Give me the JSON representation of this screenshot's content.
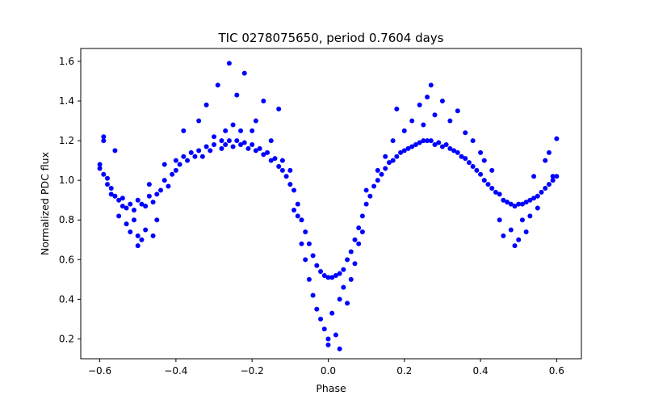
{
  "chart_data": {
    "type": "scatter",
    "title": "TIC 0278075650, period 0.7604 days",
    "xlabel": "Phase",
    "ylabel": "Normalized PDC flux",
    "xlim": [
      -0.65,
      0.665
    ],
    "ylim": [
      0.1,
      1.665
    ],
    "xticks": [
      -0.6,
      -0.4,
      -0.2,
      0.0,
      0.2,
      0.4,
      0.6
    ],
    "xtick_labels": [
      "−0.6",
      "−0.4",
      "−0.2",
      "0.0",
      "0.2",
      "0.4",
      "0.6"
    ],
    "yticks": [
      0.2,
      0.4,
      0.6,
      0.8,
      1.0,
      1.2,
      1.4,
      1.6
    ],
    "ytick_labels": [
      "0.2",
      "0.4",
      "0.6",
      "0.8",
      "1.0",
      "1.2",
      "1.4",
      "1.6"
    ],
    "grid": false,
    "legend": "none",
    "marker_color": "#0000ff",
    "series": [
      {
        "points": [
          [
            -0.6,
            1.08
          ],
          [
            -0.6,
            1.06
          ],
          [
            -0.59,
            1.22
          ],
          [
            -0.59,
            1.2
          ],
          [
            -0.59,
            1.03
          ],
          [
            -0.58,
            1.01
          ],
          [
            -0.58,
            0.98
          ],
          [
            -0.57,
            0.96
          ],
          [
            -0.57,
            0.93
          ],
          [
            -0.56,
            1.15
          ],
          [
            -0.56,
            0.92
          ],
          [
            -0.55,
            0.9
          ],
          [
            -0.55,
            0.82
          ],
          [
            -0.54,
            0.91
          ],
          [
            -0.54,
            0.87
          ],
          [
            -0.53,
            0.86
          ],
          [
            -0.53,
            0.78
          ],
          [
            -0.52,
            0.88
          ],
          [
            -0.52,
            0.74
          ],
          [
            -0.51,
            0.85
          ],
          [
            -0.51,
            0.8
          ],
          [
            -0.5,
            0.9
          ],
          [
            -0.5,
            0.72
          ],
          [
            -0.5,
            0.67
          ],
          [
            -0.49,
            0.88
          ],
          [
            -0.49,
            0.7
          ],
          [
            -0.48,
            0.87
          ],
          [
            -0.48,
            0.75
          ],
          [
            -0.47,
            0.92
          ],
          [
            -0.47,
            0.98
          ],
          [
            -0.46,
            0.89
          ],
          [
            -0.46,
            0.72
          ],
          [
            -0.45,
            0.93
          ],
          [
            -0.45,
            0.8
          ],
          [
            -0.44,
            0.95
          ],
          [
            -0.43,
            1.0
          ],
          [
            -0.43,
            1.08
          ],
          [
            -0.42,
            0.97
          ],
          [
            -0.41,
            1.03
          ],
          [
            -0.4,
            1.1
          ],
          [
            -0.4,
            1.05
          ],
          [
            -0.39,
            1.08
          ],
          [
            -0.38,
            1.25
          ],
          [
            -0.38,
            1.12
          ],
          [
            -0.37,
            1.1
          ],
          [
            -0.36,
            1.14
          ],
          [
            -0.35,
            1.12
          ],
          [
            -0.34,
            1.3
          ],
          [
            -0.34,
            1.15
          ],
          [
            -0.33,
            1.12
          ],
          [
            -0.32,
            1.17
          ],
          [
            -0.32,
            1.38
          ],
          [
            -0.31,
            1.15
          ],
          [
            -0.3,
            1.18
          ],
          [
            -0.3,
            1.22
          ],
          [
            -0.29,
            1.48
          ],
          [
            -0.28,
            1.2
          ],
          [
            -0.28,
            1.16
          ],
          [
            -0.27,
            1.18
          ],
          [
            -0.27,
            1.25
          ],
          [
            -0.26,
            1.2
          ],
          [
            -0.26,
            1.59
          ],
          [
            -0.25,
            1.17
          ],
          [
            -0.25,
            1.28
          ],
          [
            -0.24,
            1.2
          ],
          [
            -0.24,
            1.43
          ],
          [
            -0.23,
            1.18
          ],
          [
            -0.23,
            1.25
          ],
          [
            -0.22,
            1.19
          ],
          [
            -0.22,
            1.54
          ],
          [
            -0.21,
            1.16
          ],
          [
            -0.2,
            1.18
          ],
          [
            -0.2,
            1.25
          ],
          [
            -0.19,
            1.15
          ],
          [
            -0.19,
            1.3
          ],
          [
            -0.18,
            1.16
          ],
          [
            -0.17,
            1.13
          ],
          [
            -0.17,
            1.4
          ],
          [
            -0.16,
            1.14
          ],
          [
            -0.15,
            1.1
          ],
          [
            -0.15,
            1.2
          ],
          [
            -0.14,
            1.11
          ],
          [
            -0.13,
            1.07
          ],
          [
            -0.13,
            1.36
          ],
          [
            -0.12,
            1.05
          ],
          [
            -0.12,
            1.1
          ],
          [
            -0.11,
            1.02
          ],
          [
            -0.1,
            0.98
          ],
          [
            -0.1,
            1.05
          ],
          [
            -0.09,
            0.95
          ],
          [
            -0.09,
            0.85
          ],
          [
            -0.08,
            0.88
          ],
          [
            -0.08,
            0.82
          ],
          [
            -0.07,
            0.8
          ],
          [
            -0.07,
            0.68
          ],
          [
            -0.06,
            0.74
          ],
          [
            -0.06,
            0.6
          ],
          [
            -0.05,
            0.68
          ],
          [
            -0.05,
            0.5
          ],
          [
            -0.04,
            0.62
          ],
          [
            -0.04,
            0.42
          ],
          [
            -0.03,
            0.57
          ],
          [
            -0.03,
            0.35
          ],
          [
            -0.02,
            0.54
          ],
          [
            -0.02,
            0.3
          ],
          [
            -0.01,
            0.52
          ],
          [
            -0.01,
            0.25
          ],
          [
            0.0,
            0.51
          ],
          [
            0.0,
            0.2
          ],
          [
            0.0,
            0.17
          ],
          [
            0.01,
            0.51
          ],
          [
            0.01,
            0.33
          ],
          [
            0.02,
            0.52
          ],
          [
            0.02,
            0.22
          ],
          [
            0.03,
            0.53
          ],
          [
            0.03,
            0.15
          ],
          [
            0.03,
            0.4
          ],
          [
            0.04,
            0.55
          ],
          [
            0.04,
            0.46
          ],
          [
            0.05,
            0.6
          ],
          [
            0.05,
            0.38
          ],
          [
            0.06,
            0.64
          ],
          [
            0.06,
            0.5
          ],
          [
            0.07,
            0.7
          ],
          [
            0.07,
            0.58
          ],
          [
            0.08,
            0.76
          ],
          [
            0.08,
            0.68
          ],
          [
            0.09,
            0.82
          ],
          [
            0.09,
            0.74
          ],
          [
            0.1,
            0.88
          ],
          [
            0.1,
            0.95
          ],
          [
            0.11,
            0.92
          ],
          [
            0.12,
            0.97
          ],
          [
            0.13,
            1.0
          ],
          [
            0.13,
            1.05
          ],
          [
            0.14,
            1.03
          ],
          [
            0.15,
            1.06
          ],
          [
            0.15,
            1.12
          ],
          [
            0.16,
            1.09
          ],
          [
            0.17,
            1.1
          ],
          [
            0.17,
            1.2
          ],
          [
            0.18,
            1.12
          ],
          [
            0.18,
            1.36
          ],
          [
            0.19,
            1.14
          ],
          [
            0.2,
            1.15
          ],
          [
            0.2,
            1.25
          ],
          [
            0.21,
            1.16
          ],
          [
            0.22,
            1.17
          ],
          [
            0.22,
            1.3
          ],
          [
            0.23,
            1.18
          ],
          [
            0.24,
            1.19
          ],
          [
            0.24,
            1.38
          ],
          [
            0.25,
            1.2
          ],
          [
            0.25,
            1.28
          ],
          [
            0.26,
            1.2
          ],
          [
            0.26,
            1.42
          ],
          [
            0.27,
            1.2
          ],
          [
            0.27,
            1.48
          ],
          [
            0.28,
            1.18
          ],
          [
            0.28,
            1.33
          ],
          [
            0.29,
            1.19
          ],
          [
            0.3,
            1.17
          ],
          [
            0.3,
            1.4
          ],
          [
            0.31,
            1.18
          ],
          [
            0.32,
            1.16
          ],
          [
            0.32,
            1.3
          ],
          [
            0.33,
            1.15
          ],
          [
            0.34,
            1.14
          ],
          [
            0.34,
            1.35
          ],
          [
            0.35,
            1.12
          ],
          [
            0.36,
            1.11
          ],
          [
            0.36,
            1.24
          ],
          [
            0.37,
            1.09
          ],
          [
            0.38,
            1.07
          ],
          [
            0.38,
            1.2
          ],
          [
            0.39,
            1.05
          ],
          [
            0.4,
            1.03
          ],
          [
            0.4,
            1.14
          ],
          [
            0.41,
            1.0
          ],
          [
            0.41,
            1.1
          ],
          [
            0.42,
            0.98
          ],
          [
            0.43,
            0.96
          ],
          [
            0.43,
            1.05
          ],
          [
            0.44,
            0.94
          ],
          [
            0.45,
            0.93
          ],
          [
            0.45,
            0.8
          ],
          [
            0.46,
            0.9
          ],
          [
            0.46,
            0.72
          ],
          [
            0.47,
            0.89
          ],
          [
            0.48,
            0.88
          ],
          [
            0.48,
            0.75
          ],
          [
            0.49,
            0.87
          ],
          [
            0.49,
            0.67
          ],
          [
            0.5,
            0.88
          ],
          [
            0.5,
            0.7
          ],
          [
            0.51,
            0.88
          ],
          [
            0.51,
            0.8
          ],
          [
            0.52,
            0.89
          ],
          [
            0.52,
            0.74
          ],
          [
            0.53,
            0.9
          ],
          [
            0.53,
            0.82
          ],
          [
            0.54,
            0.91
          ],
          [
            0.54,
            1.02
          ],
          [
            0.55,
            0.92
          ],
          [
            0.55,
            0.86
          ],
          [
            0.56,
            0.94
          ],
          [
            0.57,
            0.96
          ],
          [
            0.57,
            1.1
          ],
          [
            0.58,
            0.98
          ],
          [
            0.58,
            1.14
          ],
          [
            0.59,
            1.0
          ],
          [
            0.59,
            1.02
          ],
          [
            0.6,
            1.02
          ],
          [
            0.6,
            1.21
          ]
        ]
      }
    ]
  }
}
